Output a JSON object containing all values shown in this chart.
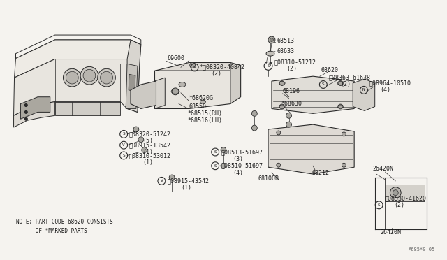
{
  "bg_color": "#f5f3ef",
  "line_color": "#2a2a2a",
  "text_color": "#1a1a1a",
  "fig_width": 6.4,
  "fig_height": 3.72,
  "note_line1": "NOTE; PART CODE 68620 CONSISTS",
  "note_line2": "      OF *MARKED PARTS",
  "watermark": "A685*0.05"
}
